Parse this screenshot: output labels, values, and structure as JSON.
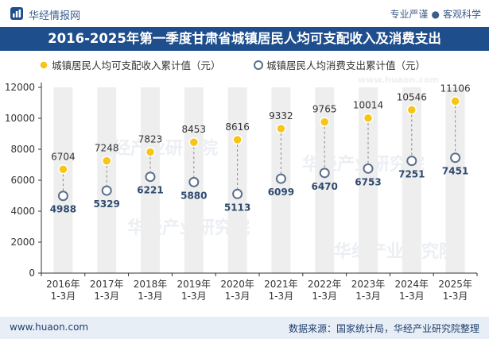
{
  "header": {
    "brand": "华经情报网",
    "slogan_left": "专业严谨",
    "slogan_right": "客观科学",
    "brand_color": "#1f4e8c"
  },
  "title": "2016-2025年第一季度甘肃省城镇居民人均可支配收入及消费支出",
  "footer": {
    "url": "www.huaon.com",
    "source": "数据来源：国家统计局，华经产业研究院整理"
  },
  "watermark": "华经产业研究院",
  "watermark_url": "www.huaon.com",
  "chart_data": {
    "type": "scatter",
    "categories": [
      "2016年\n1-3月",
      "2017年\n1-3月",
      "2018年\n1-3月",
      "2019年\n1-3月",
      "2020年\n1-3月",
      "2021年\n1-3月",
      "2022年\n1-3月",
      "2023年\n1-3月",
      "2024年\n1-3月",
      "2025年\n1-3月"
    ],
    "series": [
      {
        "name": "城镇居民人均可支配收入累计值（元）",
        "values": [
          6704,
          7248,
          7823,
          8453,
          8616,
          9332,
          9765,
          10014,
          10546,
          11106
        ],
        "color": "#f5c518"
      },
      {
        "name": "城镇居民人均消费支出累计值（元）",
        "values": [
          4988,
          5329,
          6221,
          5880,
          5113,
          6099,
          6470,
          6753,
          7251,
          7451
        ],
        "color": "#5a6f8c"
      }
    ],
    "ylim": [
      0,
      12000
    ],
    "yticks": [
      0,
      2000,
      4000,
      6000,
      8000,
      10000,
      12000
    ],
    "legend_position": "top",
    "grid": false,
    "band_color": "#eeeeee",
    "connector": "dashed"
  }
}
